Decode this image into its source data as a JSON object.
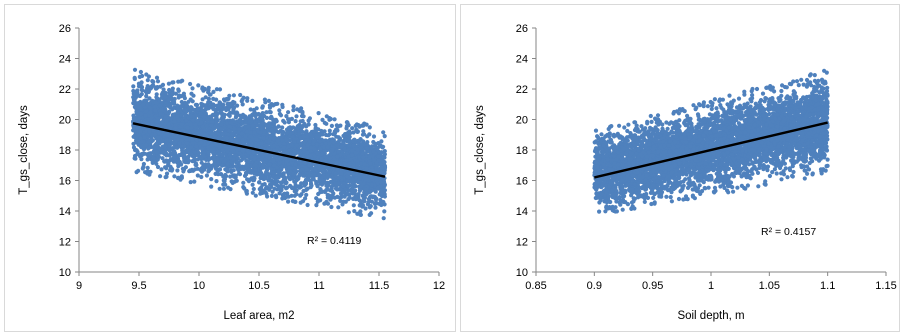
{
  "chart_data": [
    {
      "type": "scatter",
      "xlabel": "Leaf area, m2",
      "ylabel": "T_gs_close, days",
      "xlim": [
        9,
        12
      ],
      "ylim": [
        10,
        26
      ],
      "xticks": [
        "9",
        "9.5",
        "10",
        "10.5",
        "11",
        "11.5",
        "12"
      ],
      "yticks": [
        "10",
        "12",
        "14",
        "16",
        "18",
        "20",
        "22",
        "24",
        "26"
      ],
      "x_range_of_points": [
        9.45,
        11.55
      ],
      "trendline": {
        "x": [
          9.45,
          11.55
        ],
        "y": [
          19.75,
          16.25
        ]
      },
      "scatter_band_y": {
        "lower": [
          16.5,
          13.4
        ],
        "upper": [
          23.3,
          19.5
        ]
      },
      "annotation": "R² = 0.4119",
      "point_color": "#4f81bd",
      "line_color": "#000000",
      "grid": false
    },
    {
      "type": "scatter",
      "xlabel": "Soil depth, m",
      "ylabel": "T_gs_close, days",
      "xlim": [
        0.85,
        1.15
      ],
      "ylim": [
        10,
        26
      ],
      "xticks": [
        "0.85",
        "0.9",
        "0.95",
        "1",
        "1.05",
        "1.1",
        "1.15"
      ],
      "yticks": [
        "10",
        "12",
        "14",
        "16",
        "18",
        "20",
        "22",
        "24",
        "26"
      ],
      "x_range_of_points": [
        0.9,
        1.1
      ],
      "trendline": {
        "x": [
          0.9,
          1.1
        ],
        "y": [
          16.2,
          19.8
        ]
      },
      "scatter_band_y": {
        "lower": [
          13.6,
          16.4
        ],
        "upper": [
          19.3,
          23.3
        ]
      },
      "annotation": "R² = 0.4157",
      "point_color": "#4f81bd",
      "line_color": "#000000",
      "grid": false
    }
  ]
}
